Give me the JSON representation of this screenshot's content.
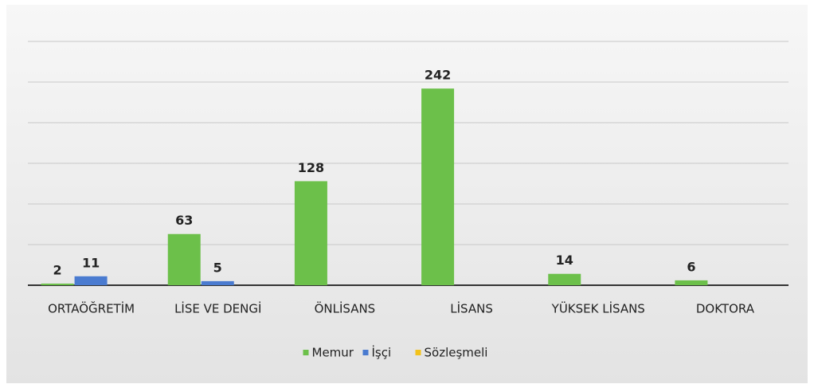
{
  "chart_data": {
    "type": "bar",
    "categories": [
      "ORTAÖĞRETİM",
      "LİSE VE DENGİ",
      "ÖNLİSANS",
      "LİSANS",
      "YÜKSEK LİSANS",
      "DOKTORA"
    ],
    "series": [
      {
        "name": "Memur",
        "color": "#6cc04a",
        "values": [
          2,
          63,
          128,
          242,
          14,
          6
        ]
      },
      {
        "name": "İşçi",
        "color": "#4a7bd0",
        "values": [
          11,
          5,
          null,
          null,
          null,
          null
        ]
      },
      {
        "name": "Sözleşmeli",
        "color": "#f2c21b",
        "values": [
          null,
          null,
          null,
          null,
          null,
          null
        ]
      }
    ],
    "ylim": [
      0,
      300
    ],
    "yticks": [
      0,
      50,
      100,
      150,
      200,
      250,
      300
    ],
    "grid": true,
    "legend": "bottom"
  }
}
